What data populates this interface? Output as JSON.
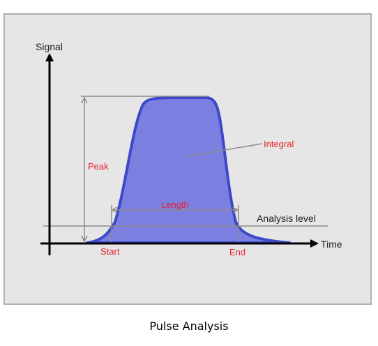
{
  "diagram": {
    "labels": {
      "y_axis": "Signal",
      "x_axis": "Time",
      "peak": "Peak",
      "integral": "Integral",
      "length": "Length",
      "analysis_level": "Analysis level",
      "start": "Start",
      "end": "End"
    },
    "colors": {
      "pulse_fill": "#7b7fe0",
      "pulse_outline": "#3f48c8",
      "annotation_text": "#e8202a",
      "guide_lines": "#8c8c8c",
      "frame_bg": "#e6e6e6"
    }
  },
  "caption": "Pulse Analysis"
}
